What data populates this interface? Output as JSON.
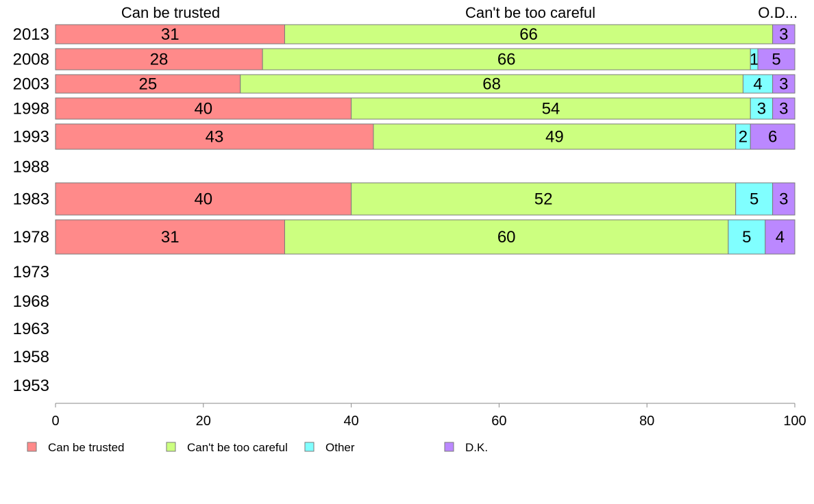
{
  "chart_data": {
    "type": "bar",
    "orientation": "horizontal",
    "stacked": true,
    "xlim": [
      0,
      100
    ],
    "x_ticks": [
      "0",
      "20",
      "40",
      "60",
      "80",
      "100"
    ],
    "categories": [
      "2013",
      "2008",
      "2003",
      "1998",
      "1993",
      "1988",
      "1983",
      "1978",
      "1973",
      "1968",
      "1963",
      "1958",
      "1953"
    ],
    "column_headers": [
      "Can be trusted",
      "Can't be too careful",
      "O...",
      "D..."
    ],
    "series": [
      {
        "name": "Can be trusted",
        "color": "#ff8a8a",
        "values": [
          31,
          28,
          25,
          40,
          43,
          null,
          40,
          31,
          null,
          null,
          null,
          null,
          null
        ]
      },
      {
        "name": "Can't be too careful",
        "color": "#ccff80",
        "values": [
          66,
          66,
          68,
          54,
          49,
          null,
          52,
          60,
          null,
          null,
          null,
          null,
          null
        ]
      },
      {
        "name": "Other",
        "color": "#80ffff",
        "values": [
          0,
          1,
          4,
          3,
          2,
          null,
          5,
          5,
          null,
          null,
          null,
          null,
          null
        ]
      },
      {
        "name": "D.K.",
        "color": "#bb88ff",
        "values": [
          3,
          5,
          3,
          3,
          6,
          null,
          3,
          4,
          null,
          null,
          null,
          null,
          null
        ]
      }
    ],
    "legend_position": "bottom",
    "grid": false
  }
}
